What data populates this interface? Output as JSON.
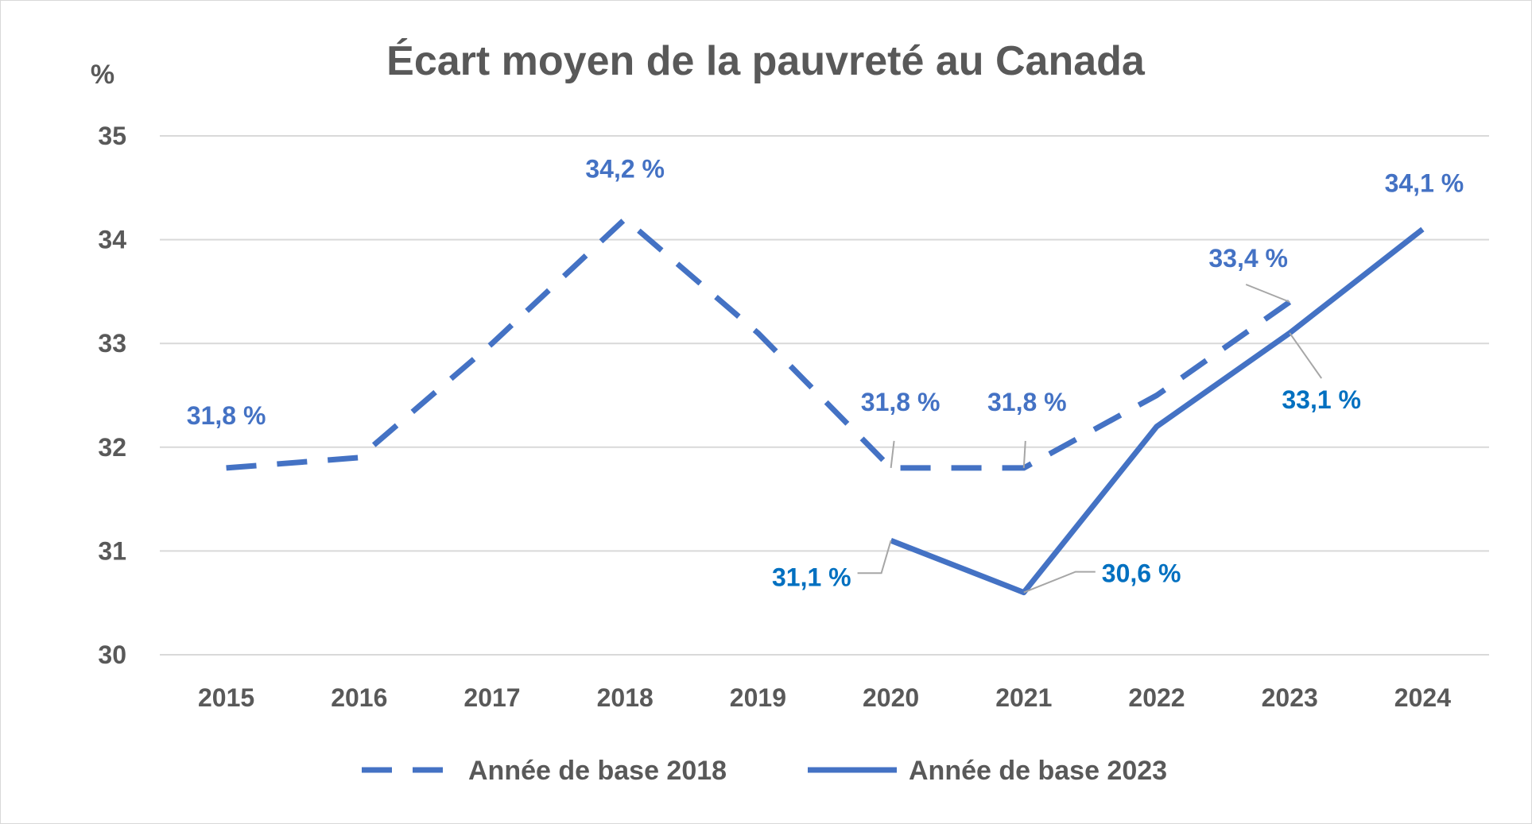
{
  "chart_data": {
    "type": "line",
    "title": "Écart moyen de la pauvreté au Canada",
    "y_unit_label": "%",
    "xlabel": "",
    "ylabel": "",
    "categories": [
      "2015",
      "2016",
      "2017",
      "2018",
      "2019",
      "2020",
      "2021",
      "2022",
      "2023",
      "2024"
    ],
    "ylim": [
      30,
      35
    ],
    "yticks": [
      "30",
      "31",
      "32",
      "33",
      "34",
      "35"
    ],
    "grid": true,
    "legend_position": "bottom",
    "series": [
      {
        "name": "Année de base 2018",
        "line_style": "dashed",
        "color": "#4472C4",
        "label_color": "#4472C4",
        "values": [
          31.8,
          31.9,
          33.0,
          34.2,
          33.1,
          31.8,
          31.8,
          32.5,
          33.4,
          null
        ],
        "data_labels": [
          {
            "index": 0,
            "text": "31,8 %"
          },
          {
            "index": 3,
            "text": "34,2 %"
          },
          {
            "index": 5,
            "text": "31,8 %"
          },
          {
            "index": 6,
            "text": "31,8 %"
          },
          {
            "index": 8,
            "text": "33,4 %"
          }
        ]
      },
      {
        "name": "Année de base 2023",
        "line_style": "solid",
        "color": "#4472C4",
        "label_color": "#0070C0",
        "values": [
          null,
          null,
          null,
          null,
          null,
          31.1,
          30.6,
          32.2,
          33.1,
          34.1
        ],
        "data_labels": [
          {
            "index": 5,
            "text": "31,1 %"
          },
          {
            "index": 6,
            "text": "30,6 %"
          },
          {
            "index": 8,
            "text": "33,1 %"
          },
          {
            "index": 9,
            "text": "34,1 %",
            "color": "#4472C4"
          }
        ]
      }
    ]
  }
}
